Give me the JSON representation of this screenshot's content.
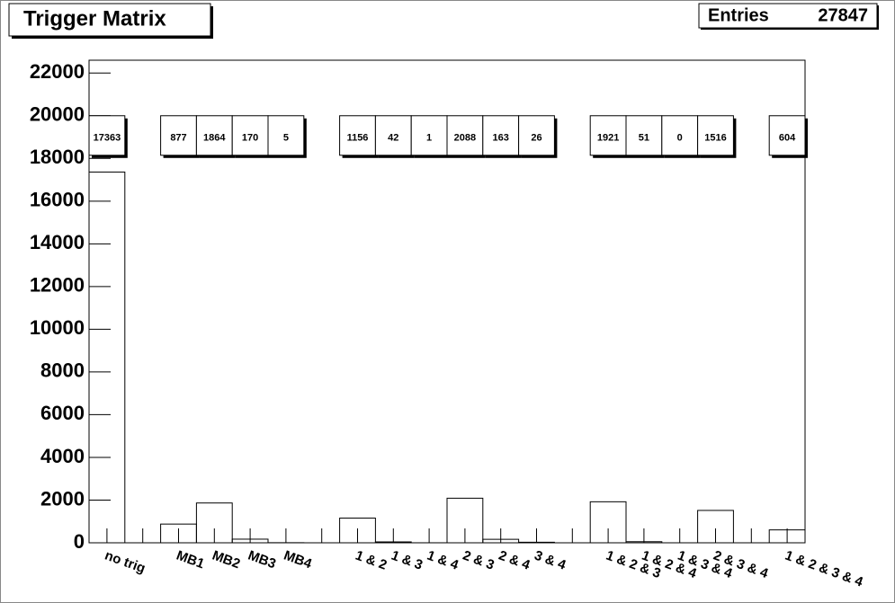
{
  "chart_data": {
    "type": "histogram",
    "title": "Trigger Matrix",
    "stats": {
      "label": "Entries",
      "value": 27847
    },
    "categories": [
      "no trig",
      null,
      "MB1",
      "MB2",
      "MB3",
      "MB4",
      null,
      "1 & 2",
      "1 & 3",
      "1 & 4",
      "2 & 3",
      "2 & 4",
      "3 & 4",
      null,
      "1 & 2 & 3",
      "1 & 2 & 4",
      "1 & 3 & 4",
      "2 & 3 & 4",
      null,
      "1 & 2 & 3 & 4"
    ],
    "values": [
      17363,
      null,
      877,
      1864,
      170,
      5,
      null,
      1156,
      42,
      1,
      2088,
      163,
      26,
      null,
      1921,
      51,
      0,
      1516,
      null,
      604
    ],
    "color": "#000000",
    "ylim": [
      0,
      22600
    ],
    "yticks": [
      0,
      2000,
      4000,
      6000,
      8000,
      10000,
      12000,
      14000,
      16000,
      18000,
      20000,
      22000
    ]
  }
}
